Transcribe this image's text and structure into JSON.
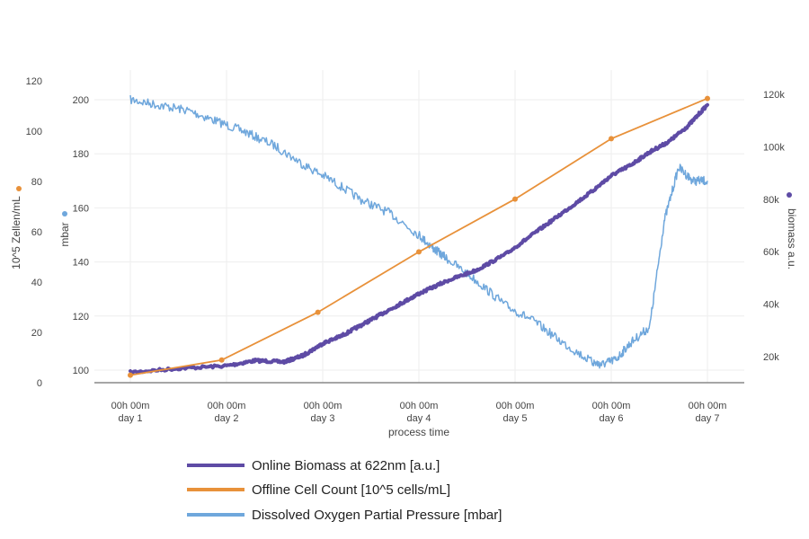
{
  "chart_data": {
    "type": "line",
    "xlabel": "process time",
    "x_ticks": [
      {
        "day": 1,
        "top": "00h 00m",
        "bottom": "day 1"
      },
      {
        "day": 2,
        "top": "00h 00m",
        "bottom": "day 2"
      },
      {
        "day": 3,
        "top": "00h 00m",
        "bottom": "day 3"
      },
      {
        "day": 4,
        "top": "00h 00m",
        "bottom": "day 4"
      },
      {
        "day": 5,
        "top": "00h 00m",
        "bottom": "day 5"
      },
      {
        "day": 6,
        "top": "00h 00m",
        "bottom": "day 6"
      },
      {
        "day": 7,
        "top": "00h 00m",
        "bottom": "day 7"
      }
    ],
    "axes": {
      "cells": {
        "label": "10^5 Zellen/mL",
        "range": [
          0,
          120
        ],
        "ticks": [
          "0",
          "20",
          "40",
          "60",
          "80",
          "100",
          "120"
        ],
        "marker_color": "#e8913a"
      },
      "mbar": {
        "label": "mbar",
        "range": [
          95,
          210
        ],
        "ticks": [
          "100",
          "120",
          "140",
          "160",
          "180",
          "200"
        ],
        "marker_color": "#6fa7dc"
      },
      "biomass": {
        "label": "biomass a.u.",
        "range": [
          10000,
          130000
        ],
        "ticks": [
          "20k",
          "40k",
          "60k",
          "80k",
          "100k",
          "120k"
        ],
        "marker_color": "#5e4ba5"
      }
    },
    "grid": true,
    "legend_position": "bottom",
    "series": [
      {
        "name": "Online Biomass at 622nm [a.u.]",
        "color": "#5e4ba5",
        "axis": "biomass",
        "x": [
          0.0,
          0.5,
          1.0,
          1.3,
          1.6,
          1.8,
          2.0,
          2.2,
          2.4,
          2.6,
          2.8,
          3.0,
          3.3,
          3.6,
          3.9,
          4.2,
          4.5,
          4.8,
          5.0,
          5.2,
          5.4,
          5.6,
          5.8,
          6.0
        ],
        "y": [
          14000,
          15500,
          16500,
          18500,
          18000,
          20500,
          25000,
          28000,
          32000,
          36000,
          40000,
          44000,
          49000,
          53000,
          59000,
          67000,
          75000,
          83000,
          89000,
          93000,
          98000,
          102000,
          108000,
          116000
        ]
      },
      {
        "name": "Offline Cell Count [10^5 cells/mL]",
        "color": "#e8913a",
        "axis": "cells",
        "x": [
          0.0,
          0.95,
          1.95,
          3.0,
          4.0,
          5.0,
          6.0
        ],
        "y": [
          3,
          9,
          28,
          52,
          73,
          97,
          113
        ]
      },
      {
        "name": "Dissolved Oxygen Partial Pressure [mbar]",
        "color": "#6fa7dc",
        "axis": "mbar",
        "x": [
          0.0,
          0.3,
          0.6,
          0.9,
          1.2,
          1.5,
          1.8,
          2.1,
          2.4,
          2.7,
          3.0,
          3.15,
          3.3,
          3.6,
          3.9,
          4.2,
          4.5,
          4.8,
          4.9,
          5.05,
          5.2,
          5.4,
          5.55,
          5.7,
          5.85,
          6.0
        ],
        "y": [
          200,
          198,
          196,
          192,
          188,
          183,
          176,
          170,
          163,
          158,
          150,
          145,
          141,
          133,
          124,
          118,
          110,
          103,
          102,
          104,
          110,
          116,
          155,
          175,
          170,
          170
        ]
      }
    ]
  }
}
